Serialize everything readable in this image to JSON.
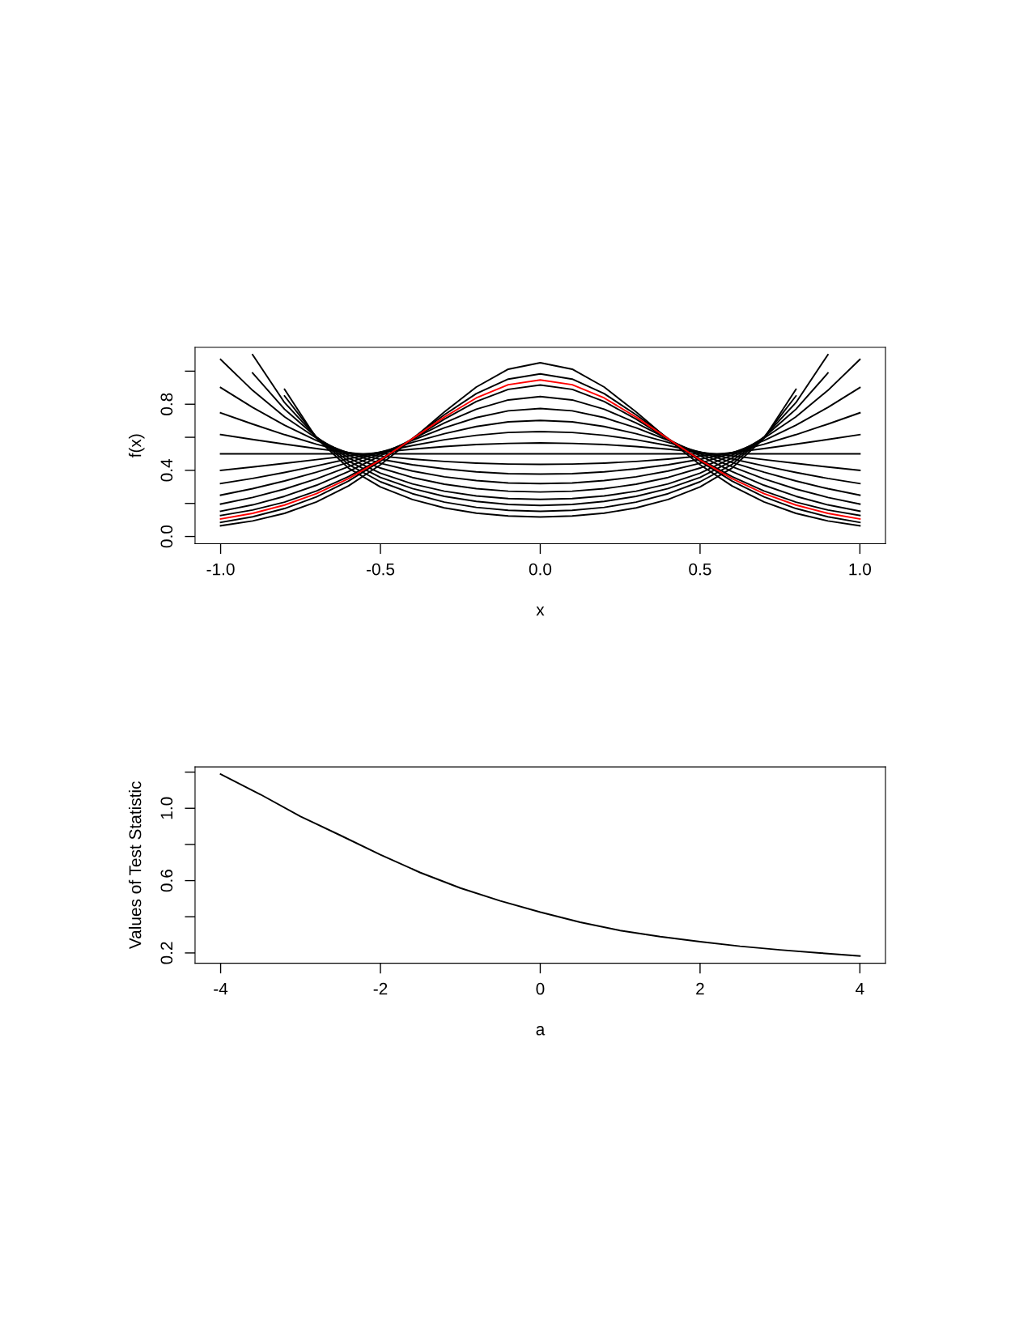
{
  "chart_data": [
    {
      "type": "line",
      "xlabel": "x",
      "ylabel": "f(x)",
      "grid": false,
      "legend": false,
      "line_style": "solid",
      "xlim": [
        -1.08,
        1.08
      ],
      "ylim": [
        -0.044,
        1.144
      ],
      "xticks": [
        {
          "value": -1,
          "label": "-1.0"
        },
        {
          "value": -0.5,
          "label": "-0.5"
        },
        {
          "value": 0,
          "label": "0.0"
        },
        {
          "value": 0.5,
          "label": "0.5"
        },
        {
          "value": 1,
          "label": "1.0"
        }
      ],
      "yticks": [
        {
          "value": 0,
          "label": "0.0"
        },
        {
          "value": 0.2,
          "label": null
        },
        {
          "value": 0.4,
          "label": "0.4"
        },
        {
          "value": 0.6,
          "label": null
        },
        {
          "value": 0.8,
          "label": "0.8"
        },
        {
          "value": 1.0,
          "label": null
        }
      ],
      "x": [
        -1,
        -0.9,
        -0.8,
        -0.7,
        -0.6,
        -0.5,
        -0.4,
        -0.3,
        -0.2,
        -0.1,
        0,
        0.1,
        0.2,
        0.3,
        0.4,
        0.5,
        0.6,
        0.7,
        0.8,
        0.9,
        1
      ],
      "series": [
        {
          "color": "#000000",
          "values": [
            0.065,
            0.094,
            0.14,
            0.209,
            0.306,
            0.434,
            0.588,
            0.753,
            0.904,
            1.012,
            1.051,
            1.012,
            0.904,
            0.753,
            0.588,
            0.434,
            0.306,
            0.209,
            0.14,
            0.094,
            0.065
          ]
        },
        {
          "color": "#000000",
          "values": [
            0.085,
            0.119,
            0.169,
            0.24,
            0.335,
            0.455,
            0.593,
            0.736,
            0.864,
            0.952,
            0.984,
            0.952,
            0.864,
            0.736,
            0.593,
            0.455,
            0.335,
            0.24,
            0.169,
            0.119,
            0.085
          ]
        },
        {
          "color": "#000000",
          "values": [
            0.127,
            0.16,
            0.208,
            0.275,
            0.362,
            0.468,
            0.588,
            0.71,
            0.816,
            0.89,
            0.916,
            0.89,
            0.816,
            0.71,
            0.588,
            0.468,
            0.362,
            0.275,
            0.208,
            0.16,
            0.127
          ]
        },
        {
          "color": "#000000",
          "values": [
            0.153,
            0.191,
            0.243,
            0.31,
            0.393,
            0.488,
            0.589,
            0.687,
            0.77,
            0.826,
            0.846,
            0.826,
            0.77,
            0.687,
            0.589,
            0.488,
            0.393,
            0.31,
            0.243,
            0.191,
            0.153
          ]
        },
        {
          "color": "#000000",
          "values": [
            0.196,
            0.236,
            0.287,
            0.349,
            0.422,
            0.501,
            0.582,
            0.657,
            0.719,
            0.76,
            0.774,
            0.76,
            0.719,
            0.657,
            0.582,
            0.501,
            0.422,
            0.349,
            0.287,
            0.236,
            0.196
          ]
        },
        {
          "color": "#000000",
          "values": [
            0.25,
            0.289,
            0.336,
            0.389,
            0.448,
            0.509,
            0.569,
            0.622,
            0.665,
            0.693,
            0.702,
            0.693,
            0.665,
            0.622,
            0.569,
            0.509,
            0.448,
            0.389,
            0.336,
            0.289,
            0.25
          ]
        },
        {
          "color": "#000000",
          "values": [
            0.32,
            0.351,
            0.387,
            0.427,
            0.469,
            0.511,
            0.55,
            0.585,
            0.612,
            0.629,
            0.635,
            0.629,
            0.612,
            0.585,
            0.55,
            0.511,
            0.469,
            0.427,
            0.387,
            0.351,
            0.32
          ]
        },
        {
          "color": "#000000",
          "values": [
            0.4,
            0.42,
            0.442,
            0.465,
            0.488,
            0.509,
            0.528,
            0.544,
            0.556,
            0.563,
            0.566,
            0.563,
            0.556,
            0.544,
            0.528,
            0.509,
            0.488,
            0.465,
            0.442,
            0.42,
            0.4
          ]
        },
        {
          "color": "#000000",
          "values": [
            0.5,
            0.5,
            0.5,
            0.5,
            0.5,
            0.5,
            0.5,
            0.5,
            0.5,
            0.5,
            0.5,
            0.5,
            0.5,
            0.5,
            0.5,
            0.5,
            0.5,
            0.5,
            0.5,
            0.5,
            0.5
          ]
        },
        {
          "color": "#000000",
          "values": [
            0.616,
            0.587,
            0.559,
            0.532,
            0.507,
            0.486,
            0.468,
            0.454,
            0.444,
            0.438,
            0.436,
            0.438,
            0.444,
            0.454,
            0.468,
            0.486,
            0.507,
            0.532,
            0.559,
            0.587,
            0.616
          ]
        },
        {
          "color": "#000000",
          "values": [
            0.748,
            0.68,
            0.616,
            0.558,
            0.508,
            0.467,
            0.434,
            0.409,
            0.391,
            0.38,
            0.377,
            0.38,
            0.391,
            0.409,
            0.434,
            0.467,
            0.508,
            0.558,
            0.616,
            0.68,
            0.748
          ]
        },
        {
          "color": "#000000",
          "values": [
            0.901,
            0.781,
            0.673,
            0.58,
            0.504,
            0.443,
            0.396,
            0.361,
            0.338,
            0.324,
            0.32,
            0.324,
            0.338,
            0.361,
            0.396,
            0.443,
            0.504,
            0.58,
            0.673,
            0.781,
            0.901
          ]
        },
        {
          "color": "#000000",
          "values": [
            1.071,
            0.884,
            0.724,
            0.594,
            0.492,
            0.414,
            0.357,
            0.316,
            0.289,
            0.274,
            0.269,
            0.274,
            0.289,
            0.316,
            0.357,
            0.414,
            0.492,
            0.594,
            0.724,
            0.884,
            1.071
          ]
        },
        {
          "color": "#000000",
          "x": [
            -0.9,
            -0.8,
            -0.7,
            -0.6,
            -0.5,
            -0.4,
            -0.3,
            -0.2,
            -0.1,
            0,
            0.1,
            0.2,
            0.3,
            0.4,
            0.5,
            0.6,
            0.7,
            0.8,
            0.9
          ],
          "values": [
            0.989,
            0.77,
            0.6,
            0.475,
            0.383,
            0.318,
            0.274,
            0.245,
            0.229,
            0.224,
            0.229,
            0.245,
            0.274,
            0.318,
            0.383,
            0.475,
            0.6,
            0.77,
            0.989
          ]
        },
        {
          "color": "#000000",
          "x": [
            -0.9,
            -0.8,
            -0.7,
            -0.6,
            -0.5,
            -0.4,
            -0.3,
            -0.2,
            -0.1,
            0,
            0.1,
            0.2,
            0.3,
            0.4,
            0.5,
            0.6,
            0.7,
            0.8,
            0.9
          ],
          "values": [
            1.1,
            0.81,
            0.601,
            0.456,
            0.357,
            0.29,
            0.243,
            0.212,
            0.194,
            0.188,
            0.194,
            0.212,
            0.243,
            0.29,
            0.357,
            0.456,
            0.601,
            0.81,
            1.1
          ]
        },
        {
          "color": "#000000",
          "x": [
            -0.8,
            -0.7,
            -0.6,
            -0.5,
            -0.4,
            -0.3,
            -0.2,
            -0.1,
            0,
            0.1,
            0.2,
            0.3,
            0.4,
            0.5,
            0.6,
            0.7,
            0.8
          ],
          "values": [
            0.85,
            0.6,
            0.436,
            0.331,
            0.259,
            0.208,
            0.176,
            0.158,
            0.152,
            0.158,
            0.176,
            0.208,
            0.259,
            0.331,
            0.436,
            0.6,
            0.85
          ]
        },
        {
          "color": "#000000",
          "x": [
            -0.8,
            -0.7,
            -0.6,
            -0.5,
            -0.4,
            -0.3,
            -0.2,
            -0.1,
            0,
            0.1,
            0.2,
            0.3,
            0.4,
            0.5,
            0.6,
            0.7,
            0.8
          ],
          "values": [
            0.89,
            0.594,
            0.414,
            0.3,
            0.224,
            0.173,
            0.141,
            0.124,
            0.118,
            0.124,
            0.141,
            0.173,
            0.224,
            0.3,
            0.414,
            0.594,
            0.89
          ]
        },
        {
          "color": "#ff0000",
          "values": [
            0.106,
            0.14,
            0.19,
            0.259,
            0.35,
            0.463,
            0.591,
            0.722,
            0.838,
            0.918,
            0.947,
            0.918,
            0.838,
            0.722,
            0.591,
            0.463,
            0.35,
            0.259,
            0.19,
            0.14,
            0.106
          ]
        }
      ]
    },
    {
      "type": "line",
      "xlabel": "a",
      "ylabel": "Values of Test Statistic",
      "grid": false,
      "legend": false,
      "line_style": "solid",
      "xlim": [
        -4.32,
        4.32
      ],
      "ylim": [
        0.143,
        1.229
      ],
      "xticks": [
        -4,
        -2,
        0,
        2,
        4
      ],
      "yticks": [
        {
          "value": 0.2,
          "label": "0.2"
        },
        {
          "value": 0.4,
          "label": null
        },
        {
          "value": 0.6,
          "label": "0.6"
        },
        {
          "value": 0.8,
          "label": null
        },
        {
          "value": 1.0,
          "label": "1.0"
        },
        {
          "value": 1.2,
          "label": null
        }
      ],
      "x": [
        -4,
        -3.5,
        -3,
        -2.5,
        -2,
        -1.5,
        -1,
        -0.5,
        0,
        0.5,
        1,
        1.5,
        2,
        2.5,
        3,
        3.5,
        4
      ],
      "series": [
        {
          "color": "#000000",
          "values": [
            1.189,
            1.076,
            0.955,
            0.85,
            0.743,
            0.644,
            0.559,
            0.488,
            0.426,
            0.37,
            0.324,
            0.29,
            0.262,
            0.237,
            0.217,
            0.2,
            0.183
          ]
        }
      ]
    }
  ]
}
